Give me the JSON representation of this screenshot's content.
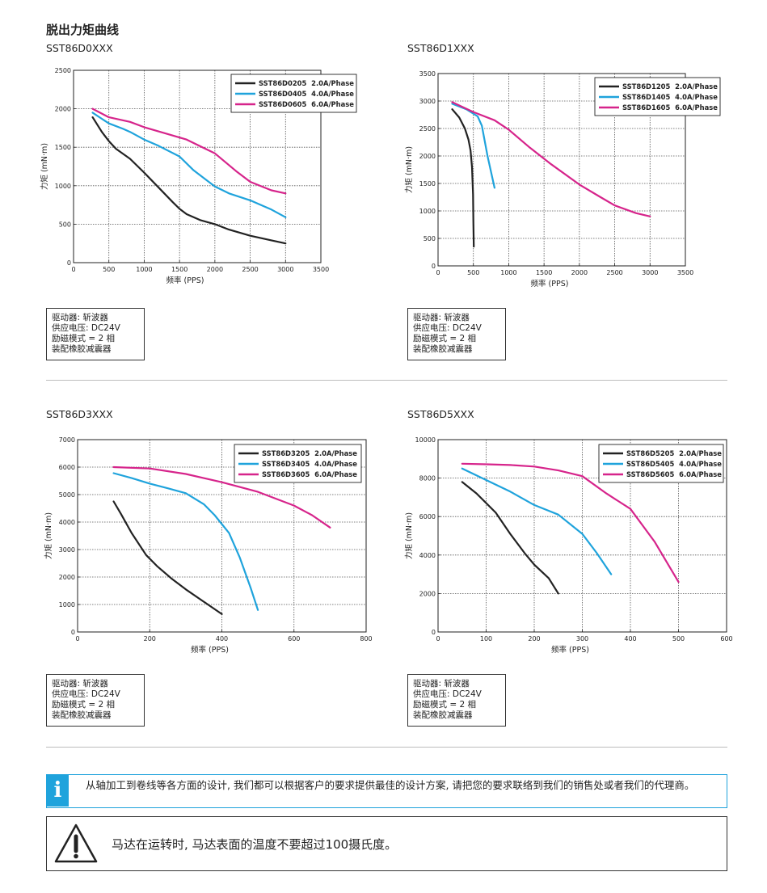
{
  "page_title": "脱出力矩曲线",
  "charts": [
    {
      "title": "SST86D0XXX"
    },
    {
      "title": "SST86D1XXX"
    },
    {
      "title": "SST86D3XXX"
    },
    {
      "title": "SST86D5XXX"
    }
  ],
  "conditions": [
    "驱动器: 斩波器",
    "供应电压: DC24V",
    "励磁模式 = 2 相",
    "装配橡胶减震器"
  ],
  "info": {
    "icon": "info-icon",
    "text": "从轴加工到卷线等各方面的设计, 我们都可以根据客户的要求提供最佳的设计方案, 请把您的要求联络到我们的销售处或者我们的代理商。"
  },
  "warning": {
    "icon": "warning-icon",
    "text": "马达在运转时, 马达表面的温度不要超过100摄氏度。"
  },
  "chart_data": [
    {
      "type": "line",
      "title": "SST86D0XXX",
      "xlabel": "频率 (PPS)",
      "ylabel": "力矩 (mN·m)",
      "xlim": [
        0,
        3500
      ],
      "ylim": [
        0,
        2500
      ],
      "xticks": [
        0,
        500,
        1000,
        1500,
        2000,
        2500,
        3000,
        3500
      ],
      "yticks": [
        0,
        500,
        1000,
        1500,
        2000,
        2500
      ],
      "grid": true,
      "legend": "top-right",
      "series": [
        {
          "name": "SST86D0205  2.0A/Phase",
          "color": "#222222",
          "x": [
            270,
            400,
            500,
            600,
            800,
            1000,
            1200,
            1400,
            1500,
            1600,
            1800,
            2000,
            2200,
            2500,
            2800,
            3000
          ],
          "y": [
            1890,
            1700,
            1580,
            1480,
            1350,
            1170,
            980,
            790,
            700,
            630,
            550,
            500,
            430,
            350,
            290,
            250
          ]
        },
        {
          "name": "SST86D0405  4.0A/Phase",
          "color": "#1fa3dc",
          "x": [
            270,
            400,
            500,
            700,
            800,
            1000,
            1200,
            1500,
            1700,
            2000,
            2200,
            2500,
            2800,
            3000
          ],
          "y": [
            1950,
            1870,
            1810,
            1740,
            1700,
            1600,
            1520,
            1380,
            1200,
            990,
            900,
            810,
            690,
            590
          ]
        },
        {
          "name": "SST86D0605  6.0A/Phase",
          "color": "#d6248b",
          "x": [
            270,
            500,
            800,
            1000,
            1300,
            1600,
            2000,
            2300,
            2500,
            2800,
            3000
          ],
          "y": [
            2000,
            1890,
            1830,
            1760,
            1680,
            1600,
            1420,
            1190,
            1050,
            940,
            900
          ]
        }
      ]
    },
    {
      "type": "line",
      "title": "SST86D1XXX",
      "xlabel": "频率 (PPS)",
      "ylabel": "力矩 (mN·m)",
      "xlim": [
        0,
        3500
      ],
      "ylim": [
        0,
        3500
      ],
      "xticks": [
        0,
        500,
        1000,
        1500,
        2000,
        2500,
        3000,
        3500
      ],
      "yticks": [
        0,
        500,
        1000,
        1500,
        2000,
        2500,
        3000,
        3500
      ],
      "grid": true,
      "legend": "top-right",
      "series": [
        {
          "name": "SST86D1205  2.0A/Phase",
          "color": "#222222",
          "x": [
            200,
            300,
            380,
            430,
            460,
            480,
            495,
            500,
            505
          ],
          "y": [
            2850,
            2700,
            2500,
            2300,
            2100,
            1800,
            1300,
            800,
            350
          ]
        },
        {
          "name": "SST86D1405  4.0A/Phase",
          "color": "#1fa3dc",
          "x": [
            200,
            400,
            560,
            620,
            700,
            800
          ],
          "y": [
            2950,
            2850,
            2720,
            2550,
            2000,
            1420
          ]
        },
        {
          "name": "SST86D1605  6.0A/Phase",
          "color": "#d6248b",
          "x": [
            200,
            500,
            800,
            1000,
            1300,
            1600,
            2000,
            2300,
            2500,
            2800,
            3000
          ],
          "y": [
            2980,
            2800,
            2650,
            2480,
            2150,
            1850,
            1480,
            1250,
            1100,
            960,
            900
          ]
        }
      ]
    },
    {
      "type": "line",
      "title": "SST86D3XXX",
      "xlabel": "频率 (PPS)",
      "ylabel": "力矩 (mN·m)",
      "xlim": [
        0,
        800
      ],
      "ylim": [
        0,
        7000
      ],
      "xticks": [
        0,
        200,
        400,
        600,
        800
      ],
      "yticks": [
        0,
        1000,
        2000,
        3000,
        4000,
        5000,
        6000,
        7000
      ],
      "grid": true,
      "legend": "top-right",
      "series": [
        {
          "name": "SST86D3205  2.0A/Phase",
          "color": "#222222",
          "x": [
            100,
            120,
            150,
            190,
            220,
            260,
            300,
            350,
            400
          ],
          "y": [
            4750,
            4300,
            3600,
            2800,
            2400,
            1950,
            1550,
            1100,
            650
          ]
        },
        {
          "name": "SST86D3405  4.0A/Phase",
          "color": "#1fa3dc",
          "x": [
            100,
            150,
            200,
            250,
            300,
            350,
            380,
            420,
            450,
            480,
            500
          ],
          "y": [
            5780,
            5600,
            5400,
            5230,
            5050,
            4650,
            4250,
            3600,
            2700,
            1600,
            800
          ]
        },
        {
          "name": "SST86D3605  6.0A/Phase",
          "color": "#d6248b",
          "x": [
            100,
            200,
            300,
            400,
            500,
            600,
            650,
            700
          ],
          "y": [
            6000,
            5950,
            5750,
            5450,
            5100,
            4600,
            4250,
            3800
          ]
        }
      ]
    },
    {
      "type": "line",
      "title": "SST86D5XXX",
      "xlabel": "频率 (PPS)",
      "ylabel": "力矩 (mN·m)",
      "xlim": [
        0,
        600
      ],
      "ylim": [
        0,
        10000
      ],
      "xticks": [
        0,
        100,
        200,
        300,
        400,
        500,
        600
      ],
      "yticks": [
        0,
        2000,
        4000,
        6000,
        8000,
        10000
      ],
      "grid": true,
      "legend": "top-right",
      "series": [
        {
          "name": "SST86D5205  2.0A/Phase",
          "color": "#222222",
          "x": [
            50,
            80,
            120,
            150,
            180,
            200,
            230,
            250
          ],
          "y": [
            7800,
            7200,
            6200,
            5100,
            4100,
            3500,
            2800,
            2000
          ]
        },
        {
          "name": "SST86D5405  4.0A/Phase",
          "color": "#1fa3dc",
          "x": [
            50,
            100,
            150,
            200,
            250,
            300,
            330,
            360
          ],
          "y": [
            8500,
            7900,
            7300,
            6600,
            6100,
            5100,
            4100,
            3000
          ]
        },
        {
          "name": "SST86D5605  6.0A/Phase",
          "color": "#d6248b",
          "x": [
            50,
            100,
            150,
            200,
            250,
            300,
            350,
            400,
            450,
            500
          ],
          "y": [
            8750,
            8720,
            8680,
            8600,
            8400,
            8100,
            7200,
            6400,
            4700,
            2600
          ]
        }
      ]
    }
  ]
}
